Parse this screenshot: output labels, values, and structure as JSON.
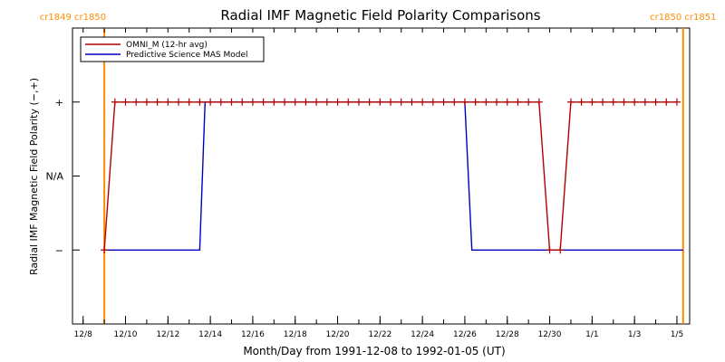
{
  "chart_data": {
    "type": "line",
    "title": "Radial IMF Magnetic Field Polarity Comparisons",
    "xlabel": "Month/Day from 1991-12-08 to 1992-01-05 (UT)",
    "ylabel": "Radial IMF Magnetic Field Polarity (−,+)",
    "x_range": [
      "1991-12-08",
      "1992-01-05"
    ],
    "x_ticks": [
      "12/8",
      "12/10",
      "12/12",
      "12/14",
      "12/16",
      "12/18",
      "12/20",
      "12/22",
      "12/24",
      "12/26",
      "12/28",
      "12/30",
      "1/1",
      "1/3",
      "1/5"
    ],
    "y_levels": [
      {
        "label": "+",
        "value": 1
      },
      {
        "label": "N/A",
        "value": 0
      },
      {
        "label": "−",
        "value": -1
      }
    ],
    "ylim": [
      -2,
      2
    ],
    "rotation_markers": [
      {
        "label": "cr1849 cr1850",
        "date": "1991-12-09T00:00"
      },
      {
        "label": "cr1850 cr1851",
        "date": "1992-01-05T07:00"
      }
    ],
    "series": [
      {
        "name": "OMNI_M (12-hr avg)",
        "color": "#b00000",
        "marker": "+",
        "points": [
          [
            "1991-12-09T00:00",
            -1
          ],
          [
            "1991-12-09T12:00",
            1
          ],
          [
            "1991-12-10T00:00",
            1
          ],
          [
            "1991-12-10T12:00",
            1
          ],
          [
            "1991-12-11T00:00",
            1
          ],
          [
            "1991-12-11T12:00",
            1
          ],
          [
            "1991-12-12T00:00",
            1
          ],
          [
            "1991-12-12T12:00",
            1
          ],
          [
            "1991-12-13T00:00",
            1
          ],
          [
            "1991-12-13T12:00",
            1
          ],
          [
            "1991-12-14T00:00",
            1
          ],
          [
            "1991-12-14T12:00",
            1
          ],
          [
            "1991-12-15T00:00",
            1
          ],
          [
            "1991-12-15T12:00",
            1
          ],
          [
            "1991-12-16T00:00",
            1
          ],
          [
            "1991-12-16T12:00",
            1
          ],
          [
            "1991-12-17T00:00",
            1
          ],
          [
            "1991-12-17T12:00",
            1
          ],
          [
            "1991-12-18T00:00",
            1
          ],
          [
            "1991-12-18T12:00",
            1
          ],
          [
            "1991-12-19T00:00",
            1
          ],
          [
            "1991-12-19T12:00",
            1
          ],
          [
            "1991-12-20T00:00",
            1
          ],
          [
            "1991-12-20T12:00",
            1
          ],
          [
            "1991-12-21T00:00",
            1
          ],
          [
            "1991-12-21T12:00",
            1
          ],
          [
            "1991-12-22T00:00",
            1
          ],
          [
            "1991-12-22T12:00",
            1
          ],
          [
            "1991-12-23T00:00",
            1
          ],
          [
            "1991-12-23T12:00",
            1
          ],
          [
            "1991-12-24T00:00",
            1
          ],
          [
            "1991-12-24T12:00",
            1
          ],
          [
            "1991-12-25T00:00",
            1
          ],
          [
            "1991-12-25T12:00",
            1
          ],
          [
            "1991-12-26T00:00",
            1
          ],
          [
            "1991-12-26T12:00",
            1
          ],
          [
            "1991-12-27T00:00",
            1
          ],
          [
            "1991-12-27T12:00",
            1
          ],
          [
            "1991-12-28T00:00",
            1
          ],
          [
            "1991-12-28T12:00",
            1
          ],
          [
            "1991-12-29T00:00",
            1
          ],
          [
            "1991-12-29T12:00",
            1
          ],
          [
            "1991-12-30T00:00",
            -1
          ],
          [
            "1991-12-30T12:00",
            -1
          ],
          [
            "1991-12-31T00:00",
            1
          ],
          [
            "1991-12-31T12:00",
            1
          ],
          [
            "1992-01-01T00:00",
            1
          ],
          [
            "1992-01-01T12:00",
            1
          ],
          [
            "1992-01-02T00:00",
            1
          ],
          [
            "1992-01-02T12:00",
            1
          ],
          [
            "1992-01-03T00:00",
            1
          ],
          [
            "1992-01-03T12:00",
            1
          ],
          [
            "1992-01-04T00:00",
            1
          ],
          [
            "1992-01-04T12:00",
            1
          ],
          [
            "1992-01-05T00:00",
            1
          ]
        ]
      },
      {
        "name": "Predictive Science MAS Model",
        "color": "#0000c0",
        "marker": "",
        "points": [
          [
            "1991-12-09T00:00",
            -1
          ],
          [
            "1991-12-13T12:00",
            -1
          ],
          [
            "1991-12-13T18:00",
            1
          ],
          [
            "1991-12-26T00:00",
            1
          ],
          [
            "1991-12-26T08:00",
            -1
          ],
          [
            "1992-01-05T07:00",
            -1
          ]
        ]
      }
    ],
    "legend": {
      "placement": "top-left"
    },
    "grid": false
  }
}
